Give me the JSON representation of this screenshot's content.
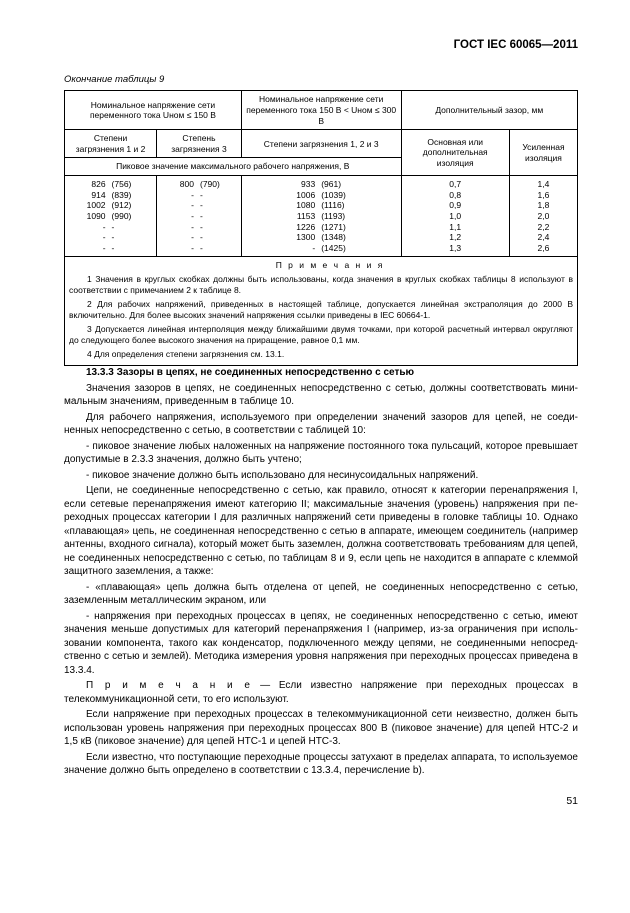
{
  "docHeader": "ГОСТ IEC 60065—2011",
  "tableCaption": "Окончание таблицы 9",
  "header": {
    "col1": "Номинальное напряжение сети переменного тока Uном ≤ 150 В",
    "col2": "Номинальное напряжение сети переменного тока 150 В < Uном ≤ 300 В",
    "col3": "Дополнительный зазор, мм",
    "sub1a": "Степени загрязнения 1 и 2",
    "sub1b": "Степень загрязнения 3",
    "sub2": "Степени загрязнения 1, 2 и 3",
    "sub3a": "Основная или дополнитель­ная изоляция",
    "sub3b": "Усиленная изоляция",
    "midRow": "Пиковое значение максимального рабочего напряжения, В"
  },
  "rows": [
    {
      "c1a": "826",
      "c1b": "(756)",
      "c2a": "800",
      "c2b": "(790)",
      "c3a": "933",
      "c3b": "(961)",
      "c4": "0,7",
      "c5": "1,4"
    },
    {
      "c1a": "914",
      "c1b": "(839)",
      "c2a": "-",
      "c2b": "-",
      "c3a": "1006",
      "c3b": "(1039)",
      "c4": "0,8",
      "c5": "1,6"
    },
    {
      "c1a": "1002",
      "c1b": "(912)",
      "c2a": "-",
      "c2b": "-",
      "c3a": "1080",
      "c3b": "(1116)",
      "c4": "0,9",
      "c5": "1,8"
    },
    {
      "c1a": "1090",
      "c1b": "(990)",
      "c2a": "-",
      "c2b": "-",
      "c3a": "1153",
      "c3b": "(1193)",
      "c4": "1,0",
      "c5": "2,0"
    },
    {
      "c1a": "-",
      "c1b": "-",
      "c2a": "-",
      "c2b": "-",
      "c3a": "1226",
      "c3b": "(1271)",
      "c4": "1,1",
      "c5": "2,2"
    },
    {
      "c1a": "-",
      "c1b": "-",
      "c2a": "-",
      "c2b": "-",
      "c3a": "1300",
      "c3b": "(1348)",
      "c4": "1,2",
      "c5": "2,4"
    },
    {
      "c1a": "-",
      "c1b": "-",
      "c2a": "-",
      "c2b": "-",
      "c3a": "-",
      "c3b": "(1425)",
      "c4": "1,3",
      "c5": "2,6"
    }
  ],
  "notesTitle": "П р и м е ч а н и я",
  "notes": [
    "1 Значения в круглых скобках должны быть использованы, когда значения в круглых скобках таблицы 8 используют в соответствии с примечанием 2 к таблице 8.",
    "2 Для рабочих напряжений, приведенных в настоящей таблице, допускается линейная экстраполяция до 2000 В включительно. Для более высоких значений напряжения ссылки приведены в IEC 60664-1.",
    "3 Допускается линейная интерполяция между ближайшими двумя точками, при которой расчетный интервал округляют до следующего более высокого значения на приращение, равное 0,1 мм.",
    "4 Для определения степени загрязнения см. 13.1."
  ],
  "section": {
    "title": "13.3.3 Зазоры в цепях, не соединенных непосредственно с сетью",
    "paragraphs": [
      "Значения зазоров в цепях, не соединенных непосредственно с сетью, должны соответствовать мини­мальным значениям, приведенным в таблице 10.",
      "Для рабочего напряжения, используемого при определении значений зазоров для цепей, не соеди­ненных непосредственно с сетью, в соответствии с таблицей 10:",
      "- пиковое значение любых наложенных на напряжение постоянного тока пульсаций, которое превы­шает допустимые в 2.3.3 значения, должно быть учтено;",
      "- пиковое значение должно быть использовано для несинусоидальных напряжений.",
      "Цепи, не соединенные непосредственно с сетью, как правило, относят к категории перенапряжения I, если сетевые перенапряжения имеют категорию II; максимальные значения (уровень) напряжения при пе­реходных процессах категории I для различных напряжений сети приведены в головке таблицы 10. Однако «плавающая» цепь, не соединенная непосредственно с сетью в аппарате, имеющем соединитель (напри­мер антенны, входного сигнала), который может быть заземлен, должна соответствовать требованиям для цепей, не соединенных непосредственно с сетью, по таблицам 8 и 9, если цепь не находится в аппарате с клеммой защитного заземления, а также:",
      "- «плавающая» цепь должна быть отделена от цепей, не соединенных непосредственно с сетью, заземленным металлическим экраном, или",
      "- напряжения при переходных процессах в цепях, не соединенных непосредственно с сетью, имеют значения меньше допустимых для категорий перенапряжения I (например, из-за ограничения при исполь­зовании компонента, такого как конденсатор, подключенного между цепями, не соединенными непосред­ственно с сетью и землей). Методика измерения уровня напряжения при переходных процессах приведена в 13.3.4."
    ],
    "noteLabel": "П р и м е ч а н и е",
    "noteText": " — Если известно напряжение при переходных процессах в телекоммуникационной сети, то его используют.",
    "afterNote": [
      "Если напряжение при переходных процессах в телекоммуникационной сети неизвестно, должен быть использован уровень напряжения при переходных процессах 800 В (пиковое значение) для цепей НТС-2 и 1,5 кВ (пиковое значение) для цепей НТС-1 и цепей НТС-3.",
      "Если известно, что поступающие переходные процессы затухают в пределах аппарата, то исполь­зуемое значение должно быть определено в соответствии с 13.3.4, перечисление b)."
    ]
  },
  "pageNum": "51"
}
